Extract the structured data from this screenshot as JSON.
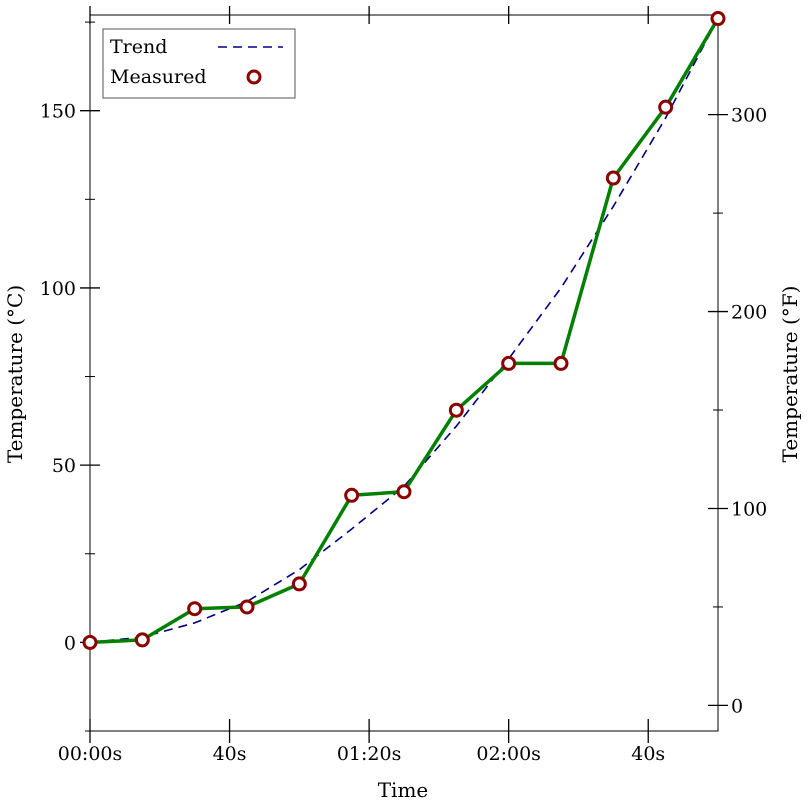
{
  "chart_data": {
    "type": "line",
    "xlabel": "Time",
    "ylabel": "Temperature (°C)",
    "ylabel_right": "Temperature (°F)",
    "x_unit": "seconds",
    "xlim": [
      0,
      180
    ],
    "ylim": [
      -25,
      177
    ],
    "y2lim": [
      -13,
      350.6
    ],
    "x_ticks": [
      {
        "value": 0,
        "label": "00:00s"
      },
      {
        "value": 40,
        "label": "40s"
      },
      {
        "value": 80,
        "label": "01:20s"
      },
      {
        "value": 120,
        "label": "02:00s"
      },
      {
        "value": 160,
        "label": "40s"
      }
    ],
    "x_minor_ticks": [],
    "y_ticks": [
      {
        "value": 0,
        "label": "0"
      },
      {
        "value": 50,
        "label": "50"
      },
      {
        "value": 100,
        "label": "100"
      },
      {
        "value": 150,
        "label": "150"
      }
    ],
    "y_minor_ticks": [
      -25,
      25,
      75,
      125,
      175
    ],
    "y2_ticks": [
      {
        "value": 0,
        "label": "0"
      },
      {
        "value": 100,
        "label": "100"
      },
      {
        "value": 200,
        "label": "200"
      },
      {
        "value": 300,
        "label": "300"
      }
    ],
    "y2_minor_ticks": [
      50,
      150,
      250
    ],
    "legend_position": "top-left",
    "legend": [
      {
        "label": "Trend",
        "style": "dashed-line",
        "color": "#000080"
      },
      {
        "label": "Measured",
        "style": "circle-marker",
        "color": "#8b0000"
      }
    ],
    "series": [
      {
        "name": "Trend",
        "style": "dashed",
        "color": "#000080",
        "x": [
          0,
          15,
          30,
          45,
          60,
          75,
          90,
          105,
          120,
          135,
          150,
          165,
          180
        ],
        "y": [
          0,
          1.5,
          5.5,
          11.5,
          20.5,
          32,
          44,
          61,
          80,
          100,
          123,
          148,
          176
        ]
      },
      {
        "name": "Measured",
        "style": "line-with-markers",
        "color": "#008000",
        "marker_color": "#8b0000",
        "x": [
          0,
          15,
          30,
          45,
          60,
          75,
          90,
          105,
          120,
          135,
          150,
          165,
          180
        ],
        "y": [
          0,
          0.7,
          9.5,
          10,
          16.5,
          41.5,
          42.5,
          65.5,
          78.7,
          78.7,
          131,
          151,
          176
        ]
      }
    ]
  }
}
